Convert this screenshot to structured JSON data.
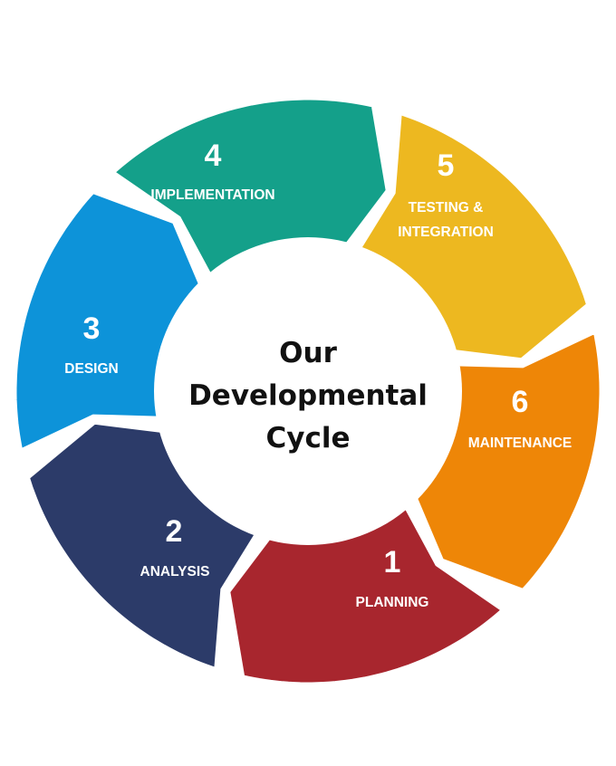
{
  "center": {
    "lines": [
      "Our",
      "Developmental",
      "Cycle"
    ]
  },
  "segments": [
    {
      "number": "1",
      "label_lines": [
        "PLANNING"
      ],
      "color": "#A8262E"
    },
    {
      "number": "2",
      "label_lines": [
        "ANALYSIS"
      ],
      "color": "#2C3B69"
    },
    {
      "number": "3",
      "label_lines": [
        "DESIGN"
      ],
      "color": "#0D93D9"
    },
    {
      "number": "4",
      "label_lines": [
        "IMPLEMENTATION"
      ],
      "color": "#14A08A"
    },
    {
      "number": "5",
      "label_lines": [
        "TESTING &",
        "INTEGRATION"
      ],
      "color": "#EDB820"
    },
    {
      "number": "6",
      "label_lines": [
        "MAINTENANCE"
      ],
      "color": "#EE8607"
    }
  ]
}
